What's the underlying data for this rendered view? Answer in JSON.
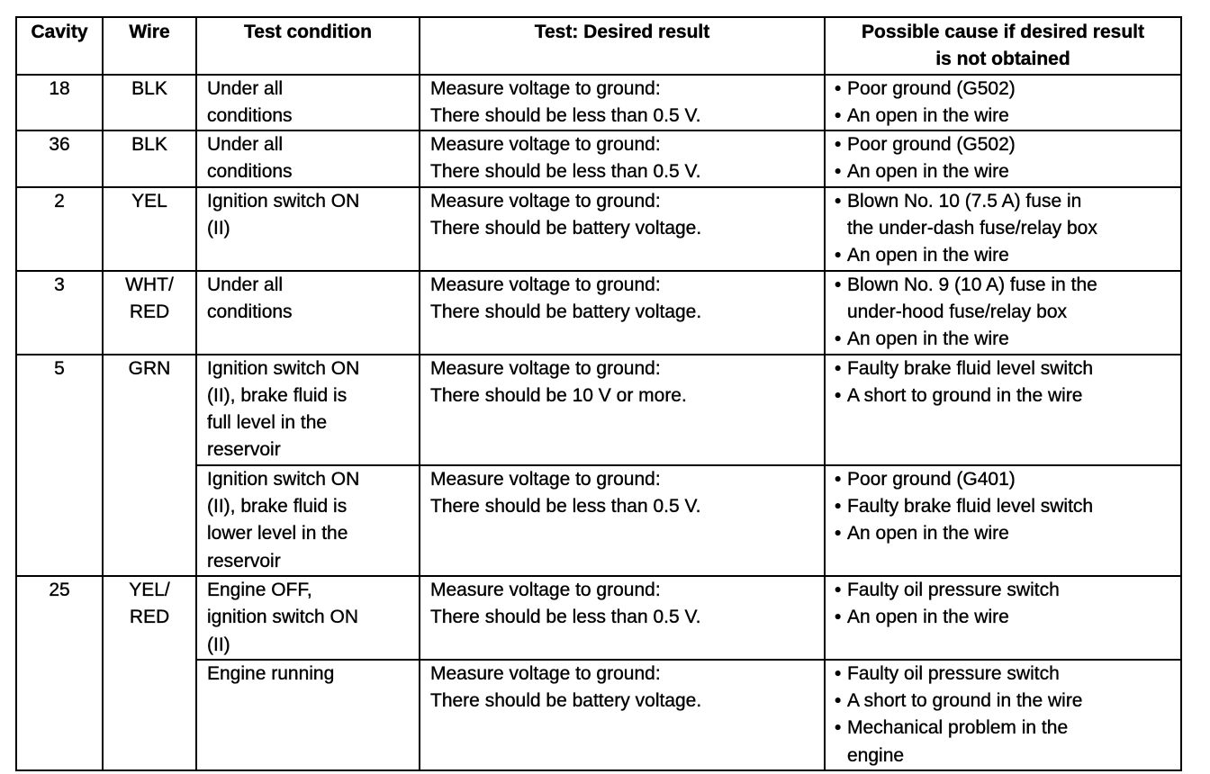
{
  "headers": [
    "Cavity",
    "Wire",
    "Test condition",
    "Test: Desired result",
    "Possible cause if desired result\nis not obtained"
  ],
  "rows": [
    {
      "cavity": "18",
      "wire": "BLK",
      "condition": "Under all\nconditions",
      "result": "Measure voltage to ground:\nThere should be less than 0.5 V.",
      "causes": [
        "Poor ground (G502)",
        "An open in the wire"
      ]
    },
    {
      "cavity": "36",
      "wire": "BLK",
      "condition": "Under all\nconditions",
      "result": "Measure voltage to ground:\nThere should be less than 0.5 V.",
      "causes": [
        "Poor ground (G502)",
        "An open in the wire"
      ]
    },
    {
      "cavity": "2",
      "wire": "YEL",
      "condition": "Ignition switch ON\n(II)",
      "result": "Measure voltage to ground:\nThere should be battery voltage.",
      "causes": [
        "Blown No. 10 (7.5 A) fuse in\nthe under-dash fuse/relay box",
        "An open in the wire"
      ]
    },
    {
      "cavity": "3",
      "wire": "WHT/\nRED",
      "condition": "Under all\nconditions",
      "result": "Measure voltage to ground:\nThere should be battery voltage.",
      "causes": [
        "Blown No. 9 (10 A) fuse in the\nunder-hood fuse/relay box",
        "An open in the wire"
      ]
    },
    {
      "cavity": "5",
      "wire": "GRN",
      "span": 2,
      "condition": "Ignition switch ON\n(II), brake fluid is\nfull level in the\nreservoir",
      "result": "Measure voltage to ground:\nThere should be 10 V or more.",
      "causes": [
        "Faulty brake fluid level switch",
        "A short to ground in the wire"
      ]
    },
    {
      "condition": "Ignition switch ON\n(II), brake fluid is\nlower level in the\nreservoir",
      "result": "Measure voltage to ground:\nThere should be less than 0.5 V.",
      "causes": [
        "Poor ground (G401)",
        "Faulty brake fluid level switch",
        "An open in the wire"
      ]
    },
    {
      "cavity": "25",
      "wire": "YEL/\nRED",
      "span": 2,
      "condition": "Engine OFF,\nignition switch ON\n(II)",
      "result": "Measure voltage to ground:\nThere should be less than 0.5 V.",
      "causes": [
        "Faulty oil pressure switch",
        "An open in the wire"
      ]
    },
    {
      "condition": "Engine running",
      "result": "Measure voltage to ground:\nThere should be battery voltage.",
      "causes": [
        "Faulty oil pressure switch",
        "A short to ground in the wire",
        "Mechanical problem in the\nengine"
      ]
    }
  ]
}
